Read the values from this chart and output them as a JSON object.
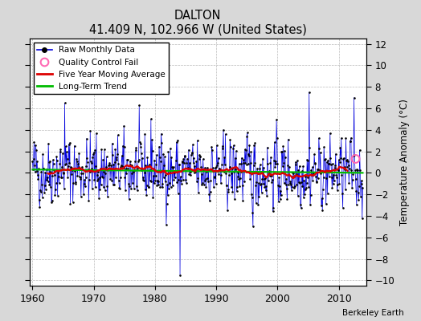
{
  "title": "DALTON",
  "subtitle": "41.409 N, 102.966 W (United States)",
  "ylabel": "Temperature Anomaly (°C)",
  "credit": "Berkeley Earth",
  "xlim": [
    1959.5,
    2014.5
  ],
  "ylim": [
    -10.5,
    12.5
  ],
  "yticks": [
    -10,
    -8,
    -6,
    -4,
    -2,
    0,
    2,
    4,
    6,
    8,
    10,
    12
  ],
  "xticks": [
    1960,
    1970,
    1980,
    1990,
    2000,
    2010
  ],
  "raw_color": "#0000dd",
  "dot_color": "#000000",
  "moving_avg_color": "#dd0000",
  "trend_color": "#00bb00",
  "qc_fail_color": "#ff69b4",
  "background_color": "#d8d8d8",
  "plot_bg_color": "#ffffff",
  "seed": 42,
  "start_year": 1960,
  "end_year": 2013,
  "qc_fail_year": 2012.75,
  "qc_fail_val": 1.3
}
